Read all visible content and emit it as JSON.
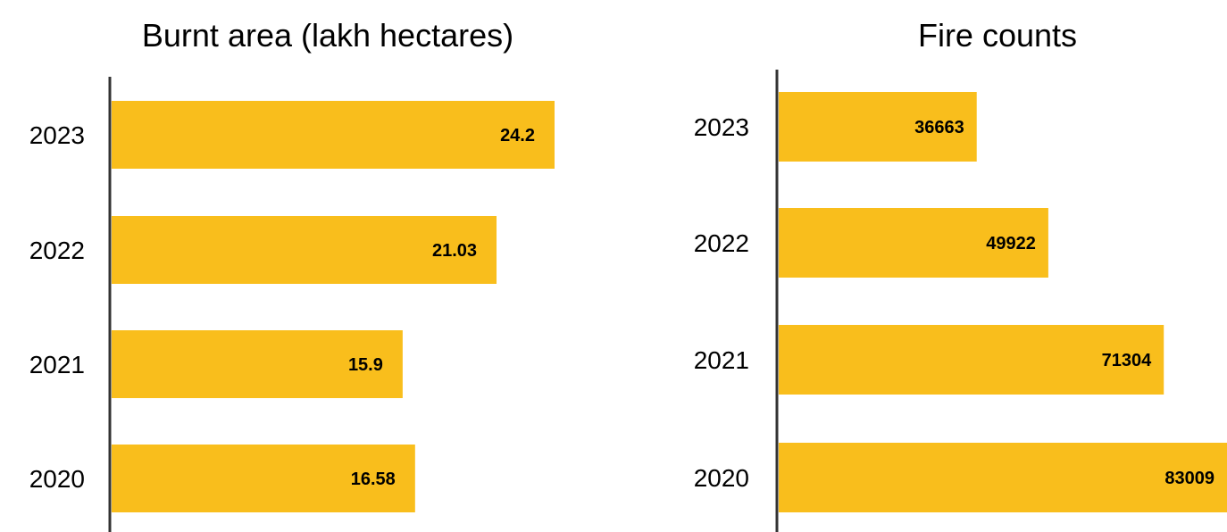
{
  "chart_data": [
    {
      "type": "bar",
      "orientation": "horizontal",
      "title": "Burnt area (lakh hectares)",
      "categories": [
        "2023",
        "2022",
        "2021",
        "2020"
      ],
      "values": [
        24.2,
        21.03,
        15.9,
        16.58
      ],
      "value_labels": [
        "24.2",
        "21.03",
        "15.9",
        "16.58"
      ],
      "xlim": [
        0,
        24.2
      ],
      "bar_color": "#F9BE1C",
      "axis_color": "#333333",
      "grid": false,
      "legend": "none"
    },
    {
      "type": "bar",
      "orientation": "horizontal",
      "title": "Fire counts",
      "categories": [
        "2023",
        "2022",
        "2021",
        "2020"
      ],
      "values": [
        36663,
        49922,
        71304,
        83009
      ],
      "value_labels": [
        "36663",
        "49922",
        "71304",
        "83009"
      ],
      "xlim": [
        0,
        83009
      ],
      "bar_color": "#F9BE1C",
      "axis_color": "#333333",
      "grid": false,
      "legend": "none"
    }
  ]
}
